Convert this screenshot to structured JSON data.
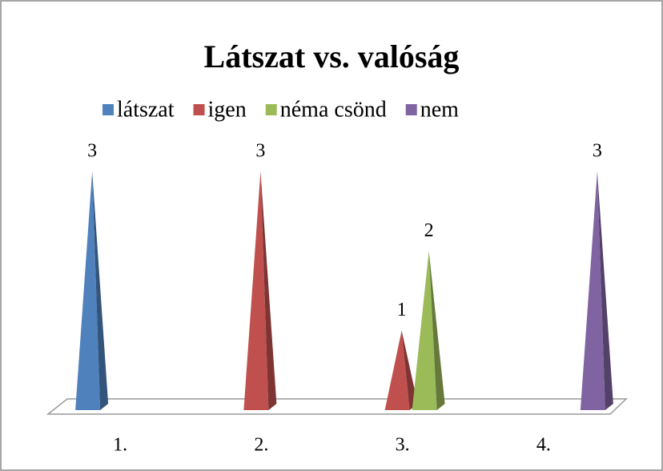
{
  "chart_data": {
    "type": "pyramid",
    "title": "Látszat vs. valóság",
    "categories": [
      "1.",
      "2.",
      "3.",
      "4."
    ],
    "series": [
      {
        "name": "látszat",
        "color": "#4f81bd",
        "values": [
          3,
          null,
          null,
          null
        ]
      },
      {
        "name": "igen",
        "color": "#c0504d",
        "values": [
          null,
          3,
          1,
          null
        ]
      },
      {
        "name": "néma csönd",
        "color": "#9bbb59",
        "values": [
          null,
          null,
          2,
          null
        ]
      },
      {
        "name": "nem",
        "color": "#8064a2",
        "values": [
          null,
          null,
          null,
          3
        ]
      }
    ],
    "legend": "top"
  }
}
